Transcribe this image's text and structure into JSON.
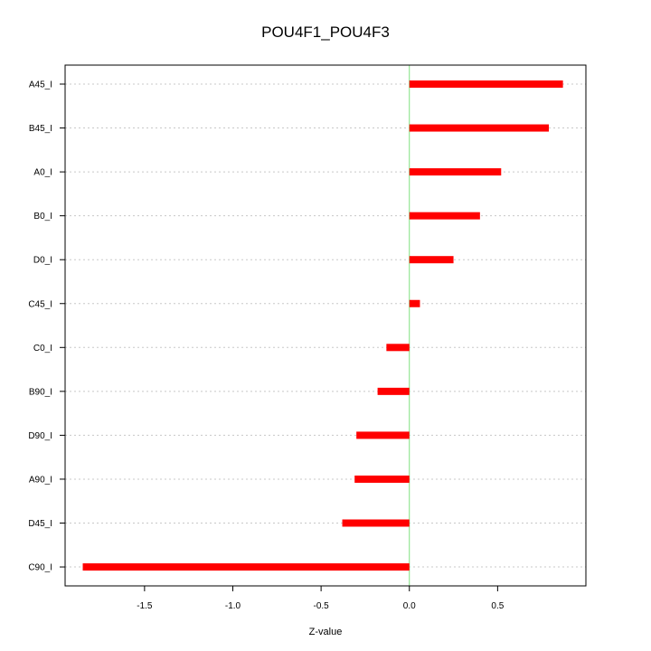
{
  "chart_data": {
    "type": "bar",
    "orientation": "horizontal",
    "title": "POU4F1_POU4F3",
    "xlabel": "Z-value",
    "ylabel": "",
    "xlim": [
      -1.95,
      1.0
    ],
    "x_ticks": [
      -1.5,
      -1.0,
      -0.5,
      0.0,
      0.5
    ],
    "x_tick_labels": [
      "-1.5",
      "-1.0",
      "-0.5",
      "0.0",
      "0.5"
    ],
    "categories": [
      "A45_I",
      "B45_I",
      "A0_I",
      "B0_I",
      "D0_I",
      "C45_I",
      "C0_I",
      "B90_I",
      "D90_I",
      "A90_I",
      "D45_I",
      "C90_I"
    ],
    "values": [
      0.87,
      0.79,
      0.52,
      0.4,
      0.25,
      0.06,
      -0.13,
      -0.18,
      -0.3,
      -0.31,
      -0.38,
      -1.85
    ],
    "grid": true,
    "reference_line_x": 0,
    "colors": {
      "bar": "#ff0000",
      "reference_line": "#7fe07f",
      "grid": "#c8c8c8",
      "axis": "#000000"
    }
  }
}
